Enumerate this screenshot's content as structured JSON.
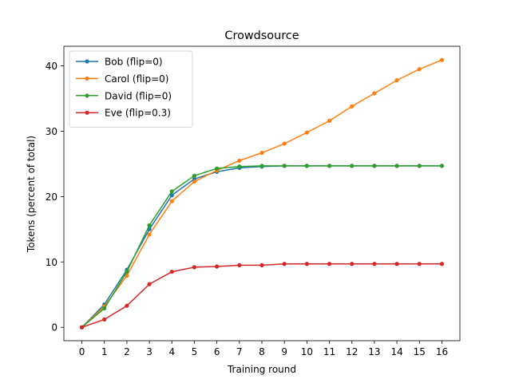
{
  "chart_data": {
    "type": "line",
    "title": "Crowdsource",
    "xlabel": "Training round",
    "ylabel": "Tokens (percent of total)",
    "x": [
      0,
      1,
      2,
      3,
      4,
      5,
      6,
      7,
      8,
      9,
      10,
      11,
      12,
      13,
      14,
      15,
      16
    ],
    "xlim": [
      -0.8,
      16.8
    ],
    "ylim": [
      -2.05,
      43.0
    ],
    "xticks": [
      0,
      1,
      2,
      3,
      4,
      5,
      6,
      7,
      8,
      9,
      10,
      11,
      12,
      13,
      14,
      15,
      16
    ],
    "yticks": [
      0,
      10,
      20,
      30,
      40
    ],
    "grid": false,
    "legend_position": "upper-left",
    "series": [
      {
        "name": "Bob (flip=0)",
        "color": "#1f77b4",
        "values": [
          0,
          3.5,
          8.8,
          15.0,
          20.2,
          22.7,
          23.8,
          24.4,
          24.6,
          24.7,
          24.7,
          24.7,
          24.7,
          24.7,
          24.7,
          24.7,
          24.7
        ]
      },
      {
        "name": "Carol (flip=0)",
        "color": "#ff7f0e",
        "values": [
          0,
          3.2,
          7.9,
          14.2,
          19.3,
          22.3,
          24.0,
          25.5,
          26.7,
          28.1,
          29.8,
          31.6,
          33.8,
          35.8,
          37.8,
          39.5,
          40.9
        ]
      },
      {
        "name": "David (flip=0)",
        "color": "#2ca02c",
        "values": [
          0,
          2.9,
          8.5,
          15.6,
          20.8,
          23.2,
          24.3,
          24.6,
          24.7,
          24.7,
          24.7,
          24.7,
          24.7,
          24.7,
          24.7,
          24.7,
          24.7
        ]
      },
      {
        "name": "Eve (flip=0.3)",
        "color": "#d62728",
        "values": [
          0,
          1.2,
          3.3,
          6.6,
          8.5,
          9.2,
          9.3,
          9.5,
          9.5,
          9.7,
          9.7,
          9.7,
          9.7,
          9.7,
          9.7,
          9.7,
          9.7
        ]
      }
    ]
  }
}
